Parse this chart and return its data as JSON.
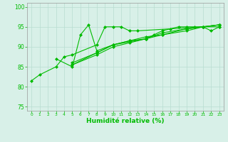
{
  "title": "",
  "xlabel": "Humidité relative (%)",
  "ylabel": "",
  "bg_color": "#d8f0e8",
  "grid_color": "#b8ddd0",
  "line_color": "#00bb00",
  "xlim": [
    -0.5,
    23.5
  ],
  "ylim": [
    74,
    101
  ],
  "yticks": [
    75,
    80,
    85,
    90,
    95,
    100
  ],
  "xticks": [
    0,
    1,
    2,
    3,
    4,
    5,
    6,
    7,
    8,
    9,
    10,
    11,
    12,
    13,
    14,
    15,
    16,
    17,
    18,
    19,
    20,
    21,
    22,
    23
  ],
  "series": [
    [
      81.5,
      83.0,
      null,
      85.0,
      87.5,
      88.0,
      null,
      null,
      90.5,
      95.0,
      95.0,
      95.0,
      94.0,
      94.0,
      null,
      null,
      null,
      null,
      null,
      null,
      null,
      95.0,
      94.0,
      95.0
    ],
    [
      null,
      null,
      null,
      87.0,
      null,
      85.0,
      93.0,
      95.5,
      89.0,
      null,
      90.5,
      null,
      null,
      null,
      92.0,
      93.0,
      94.0,
      94.5,
      95.0,
      95.0,
      95.0,
      95.0,
      null,
      95.5
    ],
    [
      null,
      null,
      null,
      null,
      null,
      85.5,
      null,
      null,
      88.5,
      null,
      90.5,
      null,
      91.5,
      null,
      92.0,
      null,
      93.0,
      null,
      null,
      94.0,
      null,
      95.0,
      null,
      95.5
    ],
    [
      null,
      null,
      null,
      null,
      null,
      85.5,
      null,
      null,
      88.0,
      null,
      90.0,
      null,
      91.0,
      null,
      92.0,
      null,
      93.5,
      null,
      null,
      94.5,
      null,
      95.0,
      null,
      95.0
    ],
    [
      null,
      null,
      null,
      null,
      null,
      86.0,
      null,
      null,
      88.5,
      null,
      90.5,
      null,
      91.5,
      null,
      92.5,
      null,
      93.0,
      null,
      null,
      94.5,
      null,
      95.0,
      null,
      95.5
    ]
  ]
}
